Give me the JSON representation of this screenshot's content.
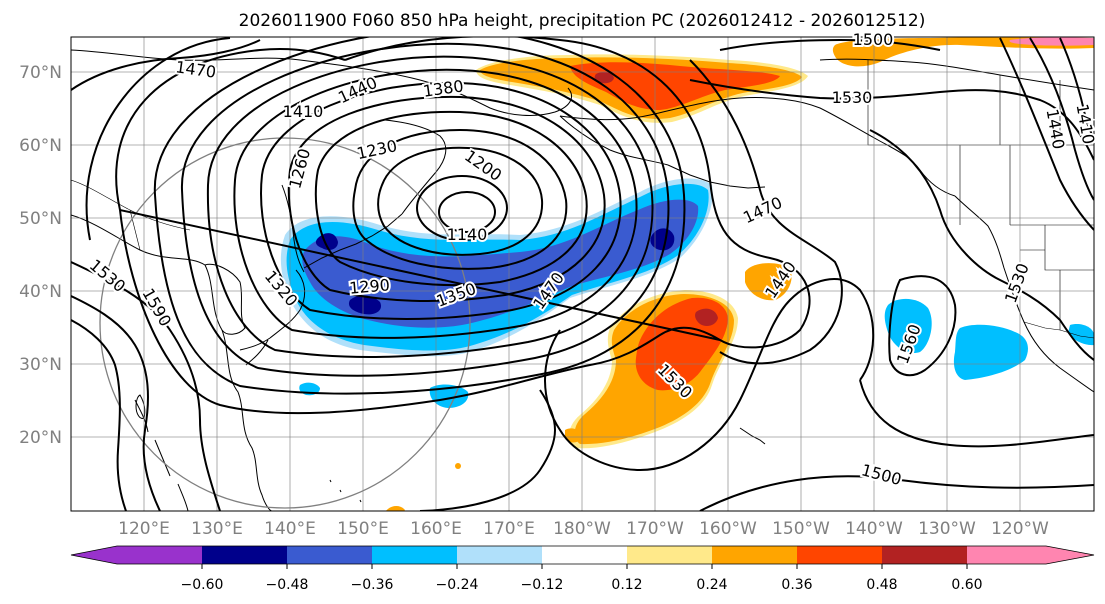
{
  "title": "2026011900 F060 850 hPa height, precipitation PC (2026012412 - 2026012512)",
  "lat_labels": [
    "70°N",
    "60°N",
    "50°N",
    "40°N",
    "30°N",
    "20°N"
  ],
  "lon_labels": [
    "120°E",
    "130°E",
    "140°E",
    "150°E",
    "160°E",
    "170°E",
    "180°W",
    "170°W",
    "160°W",
    "150°W",
    "140°W",
    "130°W",
    "120°W"
  ],
  "colorbar": {
    "ticks": [
      "−0.60",
      "−0.48",
      "−0.36",
      "−0.24",
      "−0.12",
      "0.12",
      "0.24",
      "0.36",
      "0.48",
      "0.60"
    ],
    "colors": [
      "#9932cc",
      "#00008b",
      "#3a5bd0",
      "#00bfff",
      "#b0e0fa",
      "#ffffff",
      "#ffe98a",
      "#ffa500",
      "#ff4500",
      "#b22222",
      "#ff85b0"
    ]
  },
  "contour_labels": [
    {
      "text": "1500",
      "k": "a"
    },
    {
      "text": "1470",
      "k": "b"
    },
    {
      "text": "1440",
      "k": "c"
    },
    {
      "text": "1380",
      "k": "d"
    },
    {
      "text": "1410",
      "k": "e"
    },
    {
      "text": "1530",
      "k": "f"
    },
    {
      "text": "1230",
      "k": "g"
    },
    {
      "text": "1260",
      "k": "h"
    },
    {
      "text": "1200",
      "k": "i"
    },
    {
      "text": "1140",
      "k": "j"
    },
    {
      "text": "1470",
      "k": "k"
    },
    {
      "text": "1290",
      "k": "l"
    },
    {
      "text": "1320",
      "k": "m"
    },
    {
      "text": "1350",
      "k": "n"
    },
    {
      "text": "1470",
      "k": "o"
    },
    {
      "text": "1440",
      "k": "p"
    },
    {
      "text": "1530",
      "k": "q"
    },
    {
      "text": "1590",
      "k": "r"
    },
    {
      "text": "1530",
      "k": "s"
    },
    {
      "text": "1560",
      "k": "t"
    },
    {
      "text": "1530",
      "k": "u"
    },
    {
      "text": "1500",
      "k": "v"
    },
    {
      "text": "1410",
      "k": "w"
    },
    {
      "text": "1440",
      "k": "x"
    }
  ]
}
